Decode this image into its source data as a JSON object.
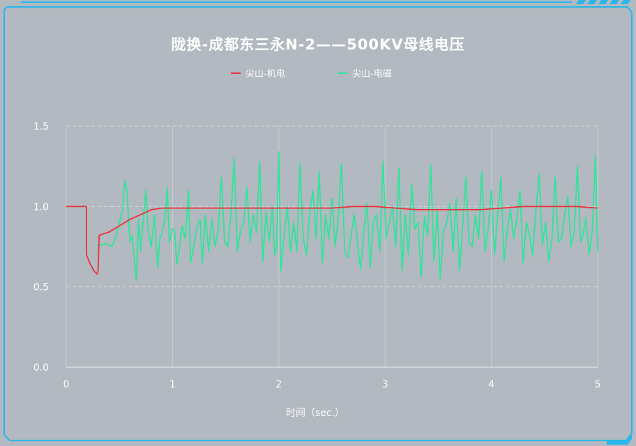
{
  "chart_data": {
    "type": "line",
    "title": "陇换-成都东三永N-2——500KV母线电压",
    "xlabel": "时间（sec.）",
    "ylabel": "",
    "xlim": [
      0,
      5
    ],
    "ylim": [
      0,
      1.5
    ],
    "x_ticks": [
      "0",
      "1",
      "2",
      "3",
      "4",
      "5"
    ],
    "y_ticks": [
      "0.0",
      "0.5",
      "1.0",
      "1.5"
    ],
    "grid": true,
    "legend_position": "top-center",
    "series": [
      {
        "name": "尖山-机电",
        "color": "#e8343a",
        "points": [
          [
            0,
            1.0
          ],
          [
            0.19,
            1.0
          ],
          [
            0.19,
            0.7
          ],
          [
            0.22,
            0.65
          ],
          [
            0.26,
            0.6
          ],
          [
            0.29,
            0.58
          ],
          [
            0.3,
            0.6
          ],
          [
            0.31,
            0.82
          ],
          [
            0.35,
            0.83
          ],
          [
            0.4,
            0.84
          ],
          [
            0.5,
            0.88
          ],
          [
            0.6,
            0.92
          ],
          [
            0.7,
            0.95
          ],
          [
            0.8,
            0.98
          ],
          [
            0.9,
            0.99
          ],
          [
            1.2,
            0.99
          ],
          [
            1.5,
            0.99
          ],
          [
            2.0,
            0.99
          ],
          [
            2.5,
            0.99
          ],
          [
            2.7,
            1.0
          ],
          [
            2.9,
            1.0
          ],
          [
            3.1,
            0.99
          ],
          [
            3.3,
            0.98
          ],
          [
            3.6,
            0.98
          ],
          [
            3.9,
            0.98
          ],
          [
            4.1,
            0.99
          ],
          [
            4.3,
            1.0
          ],
          [
            4.5,
            1.0
          ],
          [
            4.8,
            1.0
          ],
          [
            5.0,
            0.99
          ]
        ]
      },
      {
        "name": "尖山-电磁",
        "color": "#2ee59a",
        "points": [
          [
            0.29,
            0.76
          ],
          [
            0.33,
            0.76
          ],
          [
            0.38,
            0.77
          ],
          [
            0.43,
            0.75
          ],
          [
            0.47,
            0.82
          ],
          [
            0.5,
            0.9
          ],
          [
            0.53,
            0.98
          ],
          [
            0.55,
            1.16
          ],
          [
            0.57,
            1.1
          ],
          [
            0.6,
            0.78
          ],
          [
            0.62,
            0.82
          ],
          [
            0.64,
            0.68
          ],
          [
            0.66,
            0.54
          ],
          [
            0.68,
            0.92
          ],
          [
            0.7,
            0.72
          ],
          [
            0.73,
            0.96
          ],
          [
            0.75,
            1.1
          ],
          [
            0.77,
            0.85
          ],
          [
            0.8,
            0.75
          ],
          [
            0.83,
            0.95
          ],
          [
            0.86,
            0.62
          ],
          [
            0.88,
            0.8
          ],
          [
            0.9,
            0.83
          ],
          [
            0.93,
            0.93
          ],
          [
            0.95,
            1.12
          ],
          [
            0.97,
            0.78
          ],
          [
            1.0,
            0.86
          ],
          [
            1.02,
            0.85
          ],
          [
            1.04,
            0.64
          ],
          [
            1.06,
            0.72
          ],
          [
            1.09,
            0.88
          ],
          [
            1.12,
            0.8
          ],
          [
            1.15,
            1.1
          ],
          [
            1.17,
            0.65
          ],
          [
            1.2,
            0.75
          ],
          [
            1.23,
            0.88
          ],
          [
            1.26,
            0.92
          ],
          [
            1.28,
            0.65
          ],
          [
            1.31,
            0.95
          ],
          [
            1.34,
            0.72
          ],
          [
            1.37,
            0.92
          ],
          [
            1.4,
            0.75
          ],
          [
            1.43,
            0.86
          ],
          [
            1.46,
            1.18
          ],
          [
            1.49,
            0.78
          ],
          [
            1.52,
            0.75
          ],
          [
            1.55,
            0.95
          ],
          [
            1.58,
            1.3
          ],
          [
            1.61,
            0.72
          ],
          [
            1.64,
            0.85
          ],
          [
            1.67,
            0.9
          ],
          [
            1.7,
            1.12
          ],
          [
            1.73,
            0.78
          ],
          [
            1.76,
            0.95
          ],
          [
            1.79,
            0.84
          ],
          [
            1.82,
            1.28
          ],
          [
            1.85,
            0.66
          ],
          [
            1.88,
            0.97
          ],
          [
            1.91,
            0.78
          ],
          [
            1.94,
            1.0
          ],
          [
            1.96,
            0.7
          ],
          [
            1.98,
            0.75
          ],
          [
            2.0,
            1.34
          ],
          [
            2.02,
            0.6
          ],
          [
            2.05,
            0.82
          ],
          [
            2.08,
            1.0
          ],
          [
            2.11,
            0.72
          ],
          [
            2.14,
            0.9
          ],
          [
            2.17,
            0.72
          ],
          [
            2.2,
            1.27
          ],
          [
            2.23,
            0.8
          ],
          [
            2.26,
            0.7
          ],
          [
            2.29,
            0.96
          ],
          [
            2.32,
            1.1
          ],
          [
            2.35,
            0.8
          ],
          [
            2.38,
            1.22
          ],
          [
            2.41,
            0.65
          ],
          [
            2.44,
            0.95
          ],
          [
            2.47,
            0.8
          ],
          [
            2.5,
            1.05
          ],
          [
            2.53,
            0.75
          ],
          [
            2.56,
            0.93
          ],
          [
            2.59,
            1.27
          ],
          [
            2.62,
            0.72
          ],
          [
            2.65,
            0.68
          ],
          [
            2.68,
            0.82
          ],
          [
            2.71,
            0.95
          ],
          [
            2.74,
            0.78
          ],
          [
            2.77,
            0.61
          ],
          [
            2.8,
            0.85
          ],
          [
            2.83,
            1.02
          ],
          [
            2.86,
            0.62
          ],
          [
            2.89,
            0.9
          ],
          [
            2.92,
            0.95
          ],
          [
            2.95,
            0.72
          ],
          [
            2.98,
            1.28
          ],
          [
            3.01,
            0.8
          ],
          [
            3.04,
            0.9
          ],
          [
            3.07,
            1.0
          ],
          [
            3.1,
            0.75
          ],
          [
            3.13,
            1.24
          ],
          [
            3.16,
            0.6
          ],
          [
            3.19,
            0.95
          ],
          [
            3.22,
            0.7
          ],
          [
            3.25,
            1.14
          ],
          [
            3.28,
            0.86
          ],
          [
            3.31,
            0.9
          ],
          [
            3.34,
            0.56
          ],
          [
            3.37,
            0.94
          ],
          [
            3.4,
            0.82
          ],
          [
            3.43,
            1.26
          ],
          [
            3.46,
            0.66
          ],
          [
            3.49,
            0.97
          ],
          [
            3.52,
            0.55
          ],
          [
            3.55,
            0.85
          ],
          [
            3.58,
            0.9
          ],
          [
            3.61,
            1.02
          ],
          [
            3.64,
            0.72
          ],
          [
            3.67,
            1.05
          ],
          [
            3.7,
            0.6
          ],
          [
            3.73,
            0.88
          ],
          [
            3.76,
            1.18
          ],
          [
            3.79,
            0.78
          ],
          [
            3.82,
            0.75
          ],
          [
            3.85,
            0.95
          ],
          [
            3.88,
            0.8
          ],
          [
            3.91,
            1.22
          ],
          [
            3.94,
            0.72
          ],
          [
            3.97,
            0.86
          ],
          [
            4.0,
            1.1
          ],
          [
            4.03,
            0.7
          ],
          [
            4.06,
            0.95
          ],
          [
            4.09,
            1.18
          ],
          [
            4.12,
            0.66
          ],
          [
            4.15,
            0.86
          ],
          [
            4.18,
            0.98
          ],
          [
            4.21,
            0.8
          ],
          [
            4.24,
            0.92
          ],
          [
            4.27,
            1.1
          ],
          [
            4.3,
            0.65
          ],
          [
            4.33,
            0.9
          ],
          [
            4.36,
            0.82
          ],
          [
            4.39,
            0.7
          ],
          [
            4.42,
            0.98
          ],
          [
            4.45,
            1.2
          ],
          [
            4.48,
            0.76
          ],
          [
            4.51,
            0.9
          ],
          [
            4.54,
            0.66
          ],
          [
            4.57,
            0.8
          ],
          [
            4.6,
            1.18
          ],
          [
            4.63,
            0.78
          ],
          [
            4.66,
            0.8
          ],
          [
            4.69,
            0.95
          ],
          [
            4.72,
            1.06
          ],
          [
            4.75,
            0.75
          ],
          [
            4.78,
            0.85
          ],
          [
            4.81,
            1.25
          ],
          [
            4.84,
            0.78
          ],
          [
            4.86,
            0.82
          ],
          [
            4.89,
            0.93
          ],
          [
            4.92,
            0.7
          ],
          [
            4.95,
            0.85
          ],
          [
            4.98,
            1.32
          ],
          [
            5.0,
            0.72
          ]
        ]
      }
    ]
  }
}
